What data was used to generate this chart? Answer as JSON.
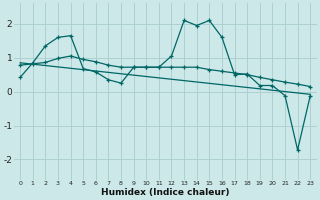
{
  "xlabel": "Humidex (Indice chaleur)",
  "bg_color": "#cce8e8",
  "grid_color": "#aacccc",
  "line_color": "#006666",
  "xlim": [
    -0.5,
    23.5
  ],
  "ylim": [
    -2.6,
    2.6
  ],
  "yticks": [
    -2,
    -1,
    0,
    1,
    2
  ],
  "xticks": [
    0,
    1,
    2,
    3,
    4,
    5,
    6,
    7,
    8,
    9,
    10,
    11,
    12,
    13,
    14,
    15,
    16,
    17,
    18,
    19,
    20,
    21,
    22,
    23
  ],
  "series1_x": [
    0,
    1,
    2,
    3,
    4,
    5,
    6,
    7,
    8,
    9,
    10,
    11,
    12,
    13,
    14,
    15,
    16,
    17,
    18,
    19,
    20,
    21,
    22,
    23
  ],
  "series1_y": [
    0.42,
    0.85,
    1.35,
    1.6,
    1.65,
    0.68,
    0.58,
    0.35,
    0.25,
    0.72,
    0.72,
    0.72,
    1.05,
    2.1,
    1.95,
    2.1,
    1.6,
    0.5,
    0.52,
    0.18,
    0.18,
    -0.12,
    -1.72,
    -0.12
  ],
  "series2_x": [
    0,
    1,
    2,
    3,
    4,
    5,
    6,
    7,
    8,
    9,
    10,
    11,
    12,
    13,
    14,
    15,
    16,
    17,
    18,
    19,
    20,
    21,
    22,
    23
  ],
  "series2_y": [
    0.78,
    0.82,
    0.86,
    0.98,
    1.05,
    0.95,
    0.88,
    0.78,
    0.72,
    0.72,
    0.72,
    0.72,
    0.72,
    0.72,
    0.72,
    0.65,
    0.6,
    0.55,
    0.5,
    0.42,
    0.35,
    0.28,
    0.22,
    0.15
  ],
  "series3_x": [
    0,
    23
  ],
  "series3_y": [
    0.85,
    -0.08
  ]
}
